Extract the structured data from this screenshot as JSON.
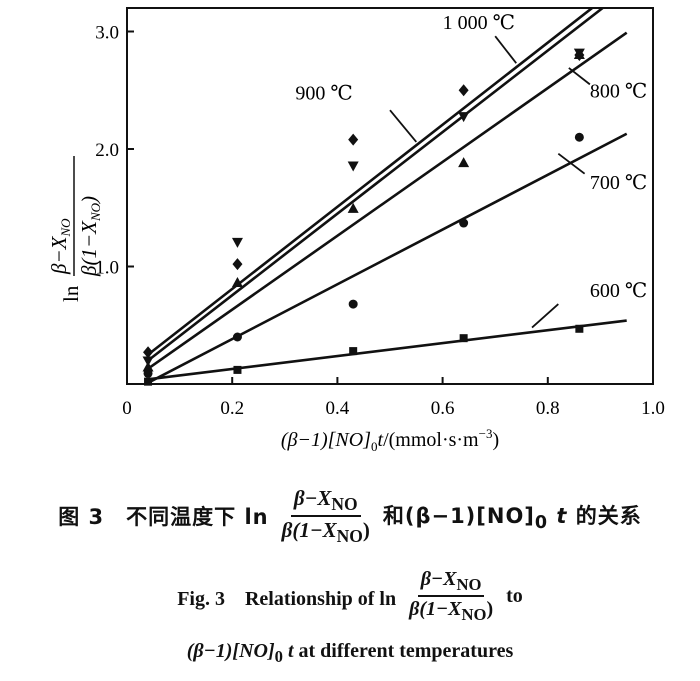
{
  "chart_data": {
    "type": "scatter",
    "ylabel": "ln β−X_NO / β(1−X_NO)",
    "ylabel_parts": {
      "prefix": "ln",
      "numerator": "β−X",
      "numerator_sub": "NO",
      "denominator": "β(1−X",
      "denominator_sub": "NO",
      "denominator_end": ")"
    },
    "xlabel": "(β−1)[NO]₀t/(mmol·s·m⁻³)",
    "xlabel_parts": {
      "a": "(β−1)[NO]",
      "sub": "0",
      "b": "t",
      "c": "/(mmol·s·m",
      "sup": "−3",
      "d": ")"
    },
    "xlim": [
      0,
      1.0
    ],
    "ylim": [
      0,
      3.2
    ],
    "xticks": [
      "0",
      "0.2",
      "0.4",
      "0.6",
      "0.8",
      "1.0"
    ],
    "yticks": [
      "1.0",
      "2.0",
      "3.0"
    ],
    "grid": false,
    "series": [
      {
        "name": "1 000 ℃",
        "marker": "diamond",
        "x": [
          0.04,
          0.21,
          0.43,
          0.64,
          0.86
        ],
        "y": [
          0.27,
          1.02,
          2.08,
          2.5,
          2.8
        ],
        "line": {
          "x": [
            0.04,
            0.89
          ],
          "y": [
            0.25,
            3.22
          ]
        }
      },
      {
        "name": "900 ℃",
        "marker": "triangle-down",
        "x": [
          0.04,
          0.21,
          0.43,
          0.64,
          0.86
        ],
        "y": [
          0.2,
          1.21,
          1.86,
          2.28,
          2.82
        ],
        "line": {
          "x": [
            0.04,
            0.91
          ],
          "y": [
            0.2,
            3.22
          ]
        }
      },
      {
        "name": "800 ℃",
        "marker": "triangle-up",
        "x": [
          0.04,
          0.21,
          0.43,
          0.64,
          0.86
        ],
        "y": [
          0.14,
          0.86,
          1.49,
          1.88,
          2.8
        ],
        "line": {
          "x": [
            0.04,
            0.95
          ],
          "y": [
            0.13,
            2.99
          ]
        }
      },
      {
        "name": "700 ℃",
        "marker": "circle",
        "x": [
          0.04,
          0.21,
          0.43,
          0.64,
          0.86
        ],
        "y": [
          0.09,
          0.4,
          0.68,
          1.37,
          2.1
        ],
        "line": {
          "x": [
            0.04,
            0.95
          ],
          "y": [
            0.01,
            2.13
          ]
        }
      },
      {
        "name": "600 ℃",
        "marker": "square",
        "x": [
          0.04,
          0.21,
          0.43,
          0.64,
          0.86
        ],
        "y": [
          0.02,
          0.12,
          0.28,
          0.39,
          0.47
        ],
        "line": {
          "x": [
            0.04,
            0.95
          ],
          "y": [
            0.04,
            0.54
          ]
        }
      }
    ],
    "annotations": [
      {
        "text": "1 000 ℃",
        "x": 0.6,
        "y": 3.02,
        "leader": [
          0.7,
          2.96,
          0.74,
          2.73
        ]
      },
      {
        "text": "900 ℃",
        "x": 0.32,
        "y": 2.42,
        "leader": [
          0.5,
          2.33,
          0.55,
          2.06
        ]
      },
      {
        "text": "800 ℃",
        "x": 0.88,
        "y": 2.44,
        "leader": [
          0.88,
          2.55,
          0.84,
          2.69
        ]
      },
      {
        "text": "700 ℃",
        "x": 0.88,
        "y": 1.66,
        "leader": [
          0.87,
          1.79,
          0.82,
          1.96
        ]
      },
      {
        "text": "600 ℃",
        "x": 0.88,
        "y": 0.74,
        "leader": [
          0.82,
          0.68,
          0.77,
          0.48
        ]
      }
    ]
  },
  "caption": {
    "cn_prefix": "图 3　不同温度下 ln",
    "cn_frac_num": "β−X",
    "cn_frac_num_sub": "NO",
    "cn_frac_den": "β(1−X",
    "cn_frac_den_sub": "NO",
    "cn_frac_den_end": ")",
    "cn_mid": "和(β−1)[NO]",
    "cn_mid_sub": "0",
    "cn_t": "t",
    "cn_suffix": "的关系",
    "en_prefix": "Fig. 3　Relationship of ln",
    "en_suffix": "to",
    "en_line2_a": "(β−1)[NO]",
    "en_line2_sub": "0",
    "en_line2_t": "t",
    "en_line2_b": "at different temperatures"
  }
}
